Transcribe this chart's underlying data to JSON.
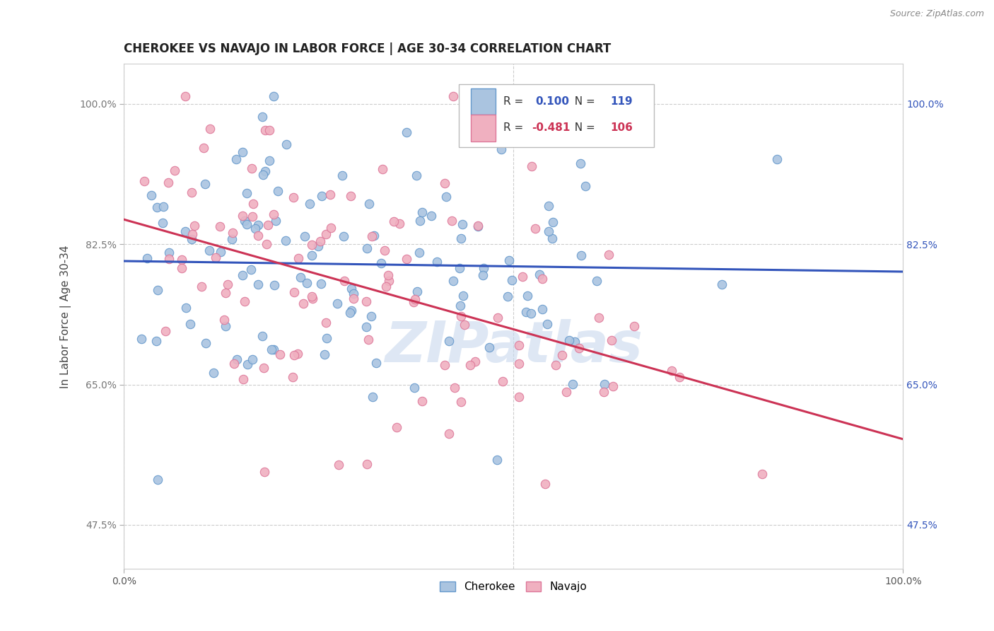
{
  "title": "CHEROKEE VS NAVAJO IN LABOR FORCE | AGE 30-34 CORRELATION CHART",
  "source_text": "Source: ZipAtlas.com",
  "ylabel": "In Labor Force | Age 30-34",
  "xlim": [
    0.0,
    1.0
  ],
  "ylim": [
    0.42,
    1.05
  ],
  "x_ticks": [
    0.0,
    1.0
  ],
  "x_tick_labels": [
    "0.0%",
    "100.0%"
  ],
  "y_ticks": [
    0.475,
    0.65,
    0.825,
    1.0
  ],
  "y_tick_labels": [
    "47.5%",
    "65.0%",
    "82.5%",
    "100.0%"
  ],
  "cherokee_color": "#aac4e0",
  "cherokee_edge_color": "#6699cc",
  "navajo_color": "#f0b0c0",
  "navajo_edge_color": "#dd7799",
  "cherokee_R": 0.1,
  "cherokee_N": 119,
  "navajo_R": -0.481,
  "navajo_N": 106,
  "trend_cherokee_color": "#3355bb",
  "trend_navajo_color": "#cc3355",
  "watermark_text": "ZIPatlas",
  "watermark_color": "#c8d8ee",
  "legend_cherokee": "Cherokee",
  "legend_navajo": "Navajo",
  "background_color": "#ffffff",
  "grid_color": "#cccccc",
  "title_fontsize": 12,
  "axis_label_fontsize": 11,
  "tick_fontsize": 10,
  "dot_size": 80,
  "cherokee_line_start_y": 0.785,
  "cherokee_line_end_y": 0.845,
  "navajo_line_start_y": 0.845,
  "navajo_line_end_y": 0.615
}
